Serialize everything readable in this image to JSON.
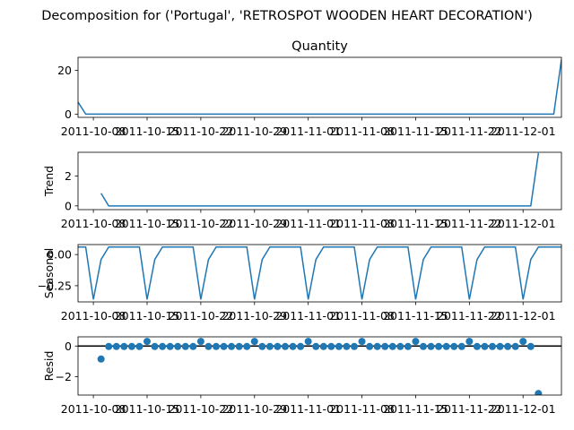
{
  "figure_title": "Decomposition for ('Portugal', 'RETROSPOT WOODEN HEART DECORATION')",
  "colors": {
    "series": "#1f77b4",
    "zero_line": "#000000",
    "axes": "#000000"
  },
  "chart_data": [
    {
      "id": "quantity",
      "type": "line",
      "title": "Quantity",
      "ylabel": "",
      "x_start": "2011-10-03",
      "x": [
        0,
        1,
        2,
        3,
        4,
        5,
        6,
        7,
        8,
        9,
        10,
        11,
        12,
        13,
        14,
        15,
        16,
        17,
        18,
        19,
        20,
        21,
        22,
        23,
        24,
        25,
        26,
        27,
        28,
        29,
        30,
        31,
        32,
        33,
        34,
        35,
        36,
        37,
        38,
        39,
        40,
        41,
        42,
        43,
        44,
        45,
        46,
        47,
        48,
        49,
        50,
        51,
        52,
        53,
        54,
        55,
        56,
        57,
        58,
        59,
        60,
        61,
        62,
        63
      ],
      "values": [
        5.5,
        0,
        0,
        0,
        0,
        0,
        0,
        0,
        0,
        0,
        0,
        0,
        0,
        0,
        0,
        0,
        0,
        0,
        0,
        0,
        0,
        0,
        0,
        0,
        0,
        0,
        0,
        0,
        0,
        0,
        0,
        0,
        0,
        0,
        0,
        0,
        0,
        0,
        0,
        0,
        0,
        0,
        0,
        0,
        0,
        0,
        0,
        0,
        0,
        0,
        0,
        0,
        0,
        0,
        0,
        0,
        0,
        0,
        0,
        0,
        0,
        0,
        0,
        25
      ],
      "xlim": [
        0,
        63
      ],
      "ylim": [
        -1.5,
        26
      ],
      "yticks": [
        0,
        20
      ],
      "xticks": [
        2,
        9,
        16,
        23,
        30,
        37,
        44,
        51,
        58
      ],
      "xtick_labels": [
        "2011-10-08",
        "2011-10-15",
        "2011-10-22",
        "2011-10-29",
        "2011-11-01",
        "2011-11-08",
        "2011-11-15",
        "2011-11-22",
        "2011-12-01"
      ]
    },
    {
      "id": "trend",
      "type": "line",
      "title": "",
      "ylabel": "Trend",
      "x": [
        3,
        4,
        5,
        6,
        7,
        8,
        9,
        10,
        11,
        12,
        13,
        14,
        15,
        16,
        17,
        18,
        19,
        20,
        21,
        22,
        23,
        24,
        25,
        26,
        27,
        28,
        29,
        30,
        31,
        32,
        33,
        34,
        35,
        36,
        37,
        38,
        39,
        40,
        41,
        42,
        43,
        44,
        45,
        46,
        47,
        48,
        49,
        50,
        51,
        52,
        53,
        54,
        55,
        56,
        57,
        58,
        59,
        60
      ],
      "values": [
        0.85,
        0,
        0,
        0,
        0,
        0,
        0,
        0,
        0,
        0,
        0,
        0,
        0,
        0,
        0,
        0,
        0,
        0,
        0,
        0,
        0,
        0,
        0,
        0,
        0,
        0,
        0,
        0,
        0,
        0,
        0,
        0,
        0,
        0,
        0,
        0,
        0,
        0,
        0,
        0,
        0,
        0,
        0,
        0,
        0,
        0,
        0,
        0,
        0,
        0,
        0,
        0,
        0,
        0,
        0,
        0,
        0,
        3.55
      ],
      "xlim": [
        0,
        63
      ],
      "ylim": [
        -0.25,
        3.6
      ],
      "yticks": [
        0,
        2
      ],
      "xticks": [
        2,
        9,
        16,
        23,
        30,
        37,
        44,
        51,
        58
      ],
      "xtick_labels": [
        "2011-10-08",
        "2011-10-15",
        "2011-10-22",
        "2011-10-29",
        "2011-11-01",
        "2011-11-08",
        "2011-11-15",
        "2011-11-22",
        "2011-12-01"
      ]
    },
    {
      "id": "seasonal",
      "type": "line",
      "title": "",
      "ylabel": "Seasonal",
      "x": [
        0,
        1,
        2,
        3,
        4,
        5,
        6,
        7,
        8,
        9,
        10,
        11,
        12,
        13,
        14,
        15,
        16,
        17,
        18,
        19,
        20,
        21,
        22,
        23,
        24,
        25,
        26,
        27,
        28,
        29,
        30,
        31,
        32,
        33,
        34,
        35,
        36,
        37,
        38,
        39,
        40,
        41,
        42,
        43,
        44,
        45,
        46,
        47,
        48,
        49,
        50,
        51,
        52,
        53,
        54,
        55,
        56,
        57,
        58,
        59,
        60,
        61,
        62,
        63
      ],
      "values": [
        0.06,
        0.06,
        -0.36,
        -0.04,
        0.06,
        0.06,
        0.06,
        0.06,
        0.06,
        -0.36,
        -0.04,
        0.06,
        0.06,
        0.06,
        0.06,
        0.06,
        -0.36,
        -0.04,
        0.06,
        0.06,
        0.06,
        0.06,
        0.06,
        -0.36,
        -0.04,
        0.06,
        0.06,
        0.06,
        0.06,
        0.06,
        -0.36,
        -0.04,
        0.06,
        0.06,
        0.06,
        0.06,
        0.06,
        -0.36,
        -0.04,
        0.06,
        0.06,
        0.06,
        0.06,
        0.06,
        -0.36,
        -0.04,
        0.06,
        0.06,
        0.06,
        0.06,
        0.06,
        -0.36,
        -0.04,
        0.06,
        0.06,
        0.06,
        0.06,
        0.06,
        -0.36,
        -0.04,
        0.06,
        0.06,
        0.06,
        0.06
      ],
      "xlim": [
        0,
        63
      ],
      "ylim": [
        -0.38,
        0.08
      ],
      "yticks": [
        0.0,
        -0.25
      ],
      "ytick_labels": [
        "0.00",
        "−0.25"
      ],
      "xticks": [
        2,
        9,
        16,
        23,
        30,
        37,
        44,
        51,
        58
      ],
      "xtick_labels": [
        "2011-10-08",
        "2011-10-15",
        "2011-10-22",
        "2011-10-29",
        "2011-11-01",
        "2011-11-08",
        "2011-11-15",
        "2011-11-22",
        "2011-12-01"
      ]
    },
    {
      "id": "resid",
      "type": "scatter",
      "title": "",
      "ylabel": "Resid",
      "x": [
        3,
        4,
        5,
        6,
        7,
        8,
        9,
        10,
        11,
        12,
        13,
        14,
        15,
        16,
        17,
        18,
        19,
        20,
        21,
        22,
        23,
        24,
        25,
        26,
        27,
        28,
        29,
        30,
        31,
        32,
        33,
        34,
        35,
        36,
        37,
        38,
        39,
        40,
        41,
        42,
        43,
        44,
        45,
        46,
        47,
        48,
        49,
        50,
        51,
        52,
        53,
        54,
        55,
        56,
        57,
        58,
        59,
        60
      ],
      "values": [
        -0.85,
        -0.03,
        -0.03,
        -0.03,
        -0.03,
        -0.03,
        0.3,
        -0.03,
        -0.03,
        -0.03,
        -0.03,
        -0.03,
        -0.03,
        0.3,
        -0.03,
        -0.03,
        -0.03,
        -0.03,
        -0.03,
        -0.03,
        0.3,
        -0.03,
        -0.03,
        -0.03,
        -0.03,
        -0.03,
        -0.03,
        0.3,
        -0.03,
        -0.03,
        -0.03,
        -0.03,
        -0.03,
        -0.03,
        0.3,
        -0.03,
        -0.03,
        -0.03,
        -0.03,
        -0.03,
        -0.03,
        0.3,
        -0.03,
        -0.03,
        -0.03,
        -0.03,
        -0.03,
        -0.03,
        0.3,
        -0.03,
        -0.03,
        -0.03,
        -0.03,
        -0.03,
        -0.03,
        0.3,
        -0.03,
        -3.1
      ],
      "zero_line": 0,
      "xlim": [
        0,
        63
      ],
      "ylim": [
        -3.2,
        0.6
      ],
      "yticks": [
        0,
        -2
      ],
      "ytick_labels": [
        "0",
        "−2"
      ],
      "xticks": [
        2,
        9,
        16,
        23,
        30,
        37,
        44,
        51,
        58
      ],
      "xtick_labels": [
        "2011-10-08",
        "2011-10-15",
        "2011-10-22",
        "2011-10-29",
        "2011-11-01",
        "2011-11-08",
        "2011-11-15",
        "2011-11-22",
        "2011-12-01"
      ]
    }
  ]
}
